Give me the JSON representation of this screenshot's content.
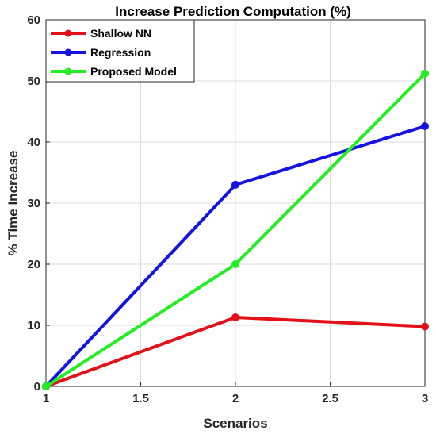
{
  "chart_data": {
    "type": "line",
    "title": "Increase Prediction Computation (%)",
    "xlabel": "Scenarios",
    "ylabel": "% Time Increase",
    "x": [
      1,
      2,
      3
    ],
    "xlim": [
      1,
      3
    ],
    "ylim": [
      0,
      60
    ],
    "xticks": [
      1,
      1.5,
      2,
      2.5,
      3
    ],
    "xtick_labels": [
      "1",
      "1.5",
      "2",
      "2.5",
      "3"
    ],
    "yticks": [
      0,
      10,
      20,
      30,
      40,
      50,
      60
    ],
    "ytick_labels": [
      "0",
      "10",
      "20",
      "30",
      "40",
      "50",
      "60"
    ],
    "grid": true,
    "legend_position": "top-left",
    "series": [
      {
        "name": "Shallow NN",
        "color": "#e3101a",
        "values": [
          0,
          11.3,
          9.8
        ]
      },
      {
        "name": "Regression",
        "color": "#1313e3",
        "values": [
          0,
          33,
          42.6
        ]
      },
      {
        "name": "Proposed Model",
        "color": "#22ee22",
        "values": [
          0,
          20,
          51.2
        ]
      }
    ]
  }
}
